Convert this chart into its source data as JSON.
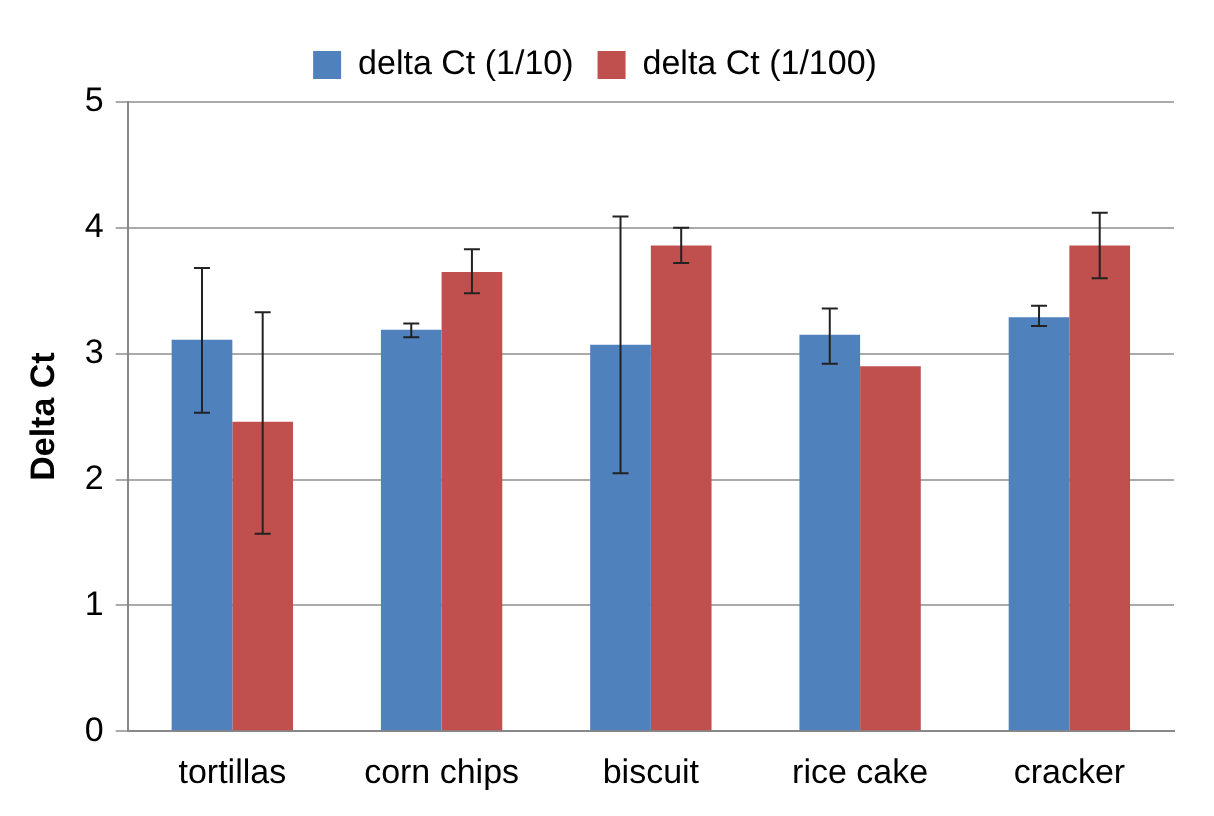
{
  "chart_data": {
    "type": "bar",
    "ylabel": "Delta Ct",
    "categories": [
      "tortillas",
      "corn chips",
      "biscuit",
      "rice cake",
      "cracker"
    ],
    "series": [
      {
        "name": "delta Ct (1/10)",
        "color": "#4f81bd",
        "values": [
          3.11,
          3.19,
          3.07,
          3.15,
          3.29
        ],
        "errors": [
          [
            2.53,
            3.68
          ],
          [
            3.13,
            3.24
          ],
          [
            2.05,
            4.09
          ],
          [
            2.92,
            3.36
          ],
          [
            3.22,
            3.38
          ]
        ]
      },
      {
        "name": "delta Ct (1/100)",
        "color": "#c0504d",
        "values": [
          2.46,
          3.65,
          3.86,
          2.9,
          3.86
        ],
        "errors": [
          [
            1.57,
            3.33
          ],
          [
            3.48,
            3.83
          ],
          [
            3.72,
            4.0
          ],
          null,
          [
            3.6,
            4.12
          ]
        ]
      }
    ],
    "ylim": [
      0,
      5
    ],
    "yticks": [
      0,
      1,
      2,
      3,
      4,
      5
    ],
    "grid": "y",
    "legend": "top"
  }
}
